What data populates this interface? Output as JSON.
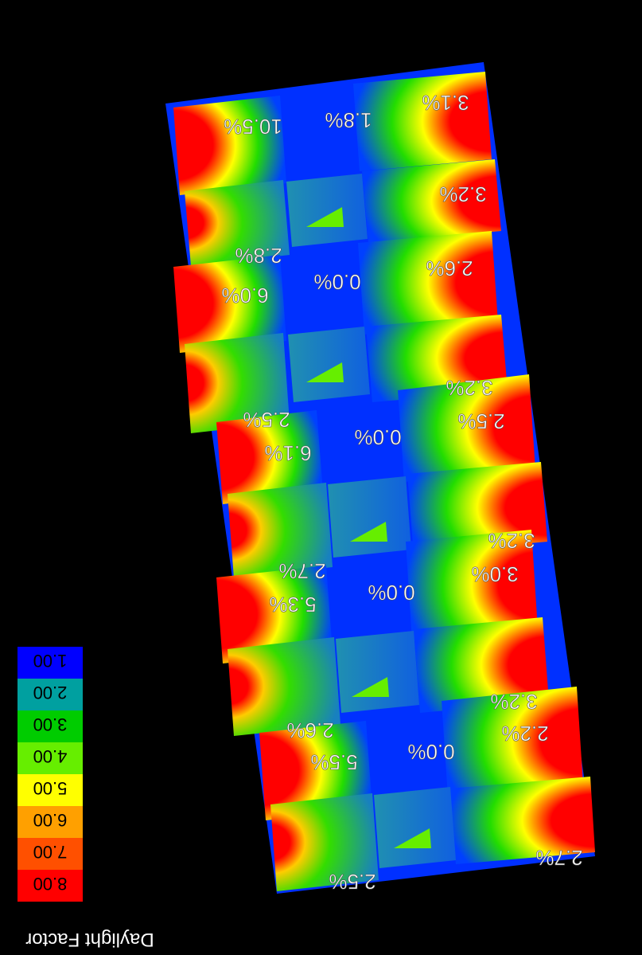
{
  "legend": {
    "title": "Daylight Factor",
    "ticks": [
      "1.00",
      "2.00",
      "3.00",
      "4.00",
      "5.00",
      "6.00",
      "7.00",
      "8.00"
    ],
    "colors": [
      "#0000ff",
      "#00a0a0",
      "#00cc00",
      "#66ee00",
      "#ffff00",
      "#ffa000",
      "#ff5000",
      "#ff0000"
    ]
  },
  "readings": [
    {
      "id": "r1",
      "text": "10.5%"
    },
    {
      "id": "r2",
      "text": "1.8%"
    },
    {
      "id": "r3",
      "text": "3.1%"
    },
    {
      "id": "r4",
      "text": "3.2%"
    },
    {
      "id": "r5",
      "text": "2.8%"
    },
    {
      "id": "r6",
      "text": "6.0%"
    },
    {
      "id": "r7",
      "text": "0.0%"
    },
    {
      "id": "r8",
      "text": "2.6%"
    },
    {
      "id": "r9",
      "text": "3.2%"
    },
    {
      "id": "r10",
      "text": "2.5%"
    },
    {
      "id": "r11",
      "text": "6.1%"
    },
    {
      "id": "r12",
      "text": "0.0%"
    },
    {
      "id": "r13",
      "text": "2.5%"
    },
    {
      "id": "r14",
      "text": "3.2%"
    },
    {
      "id": "r15",
      "text": "2.7%"
    },
    {
      "id": "r16",
      "text": "5.3%"
    },
    {
      "id": "r17",
      "text": "0.0%"
    },
    {
      "id": "r18",
      "text": "3.0%"
    },
    {
      "id": "r19",
      "text": "3.2%"
    },
    {
      "id": "r20",
      "text": "2.6%"
    },
    {
      "id": "r21",
      "text": "5.5%"
    },
    {
      "id": "r22",
      "text": "0.0%"
    },
    {
      "id": "r23",
      "text": "2.2%"
    },
    {
      "id": "r24",
      "text": "2.7%"
    },
    {
      "id": "r25",
      "text": "2.5%"
    }
  ]
}
